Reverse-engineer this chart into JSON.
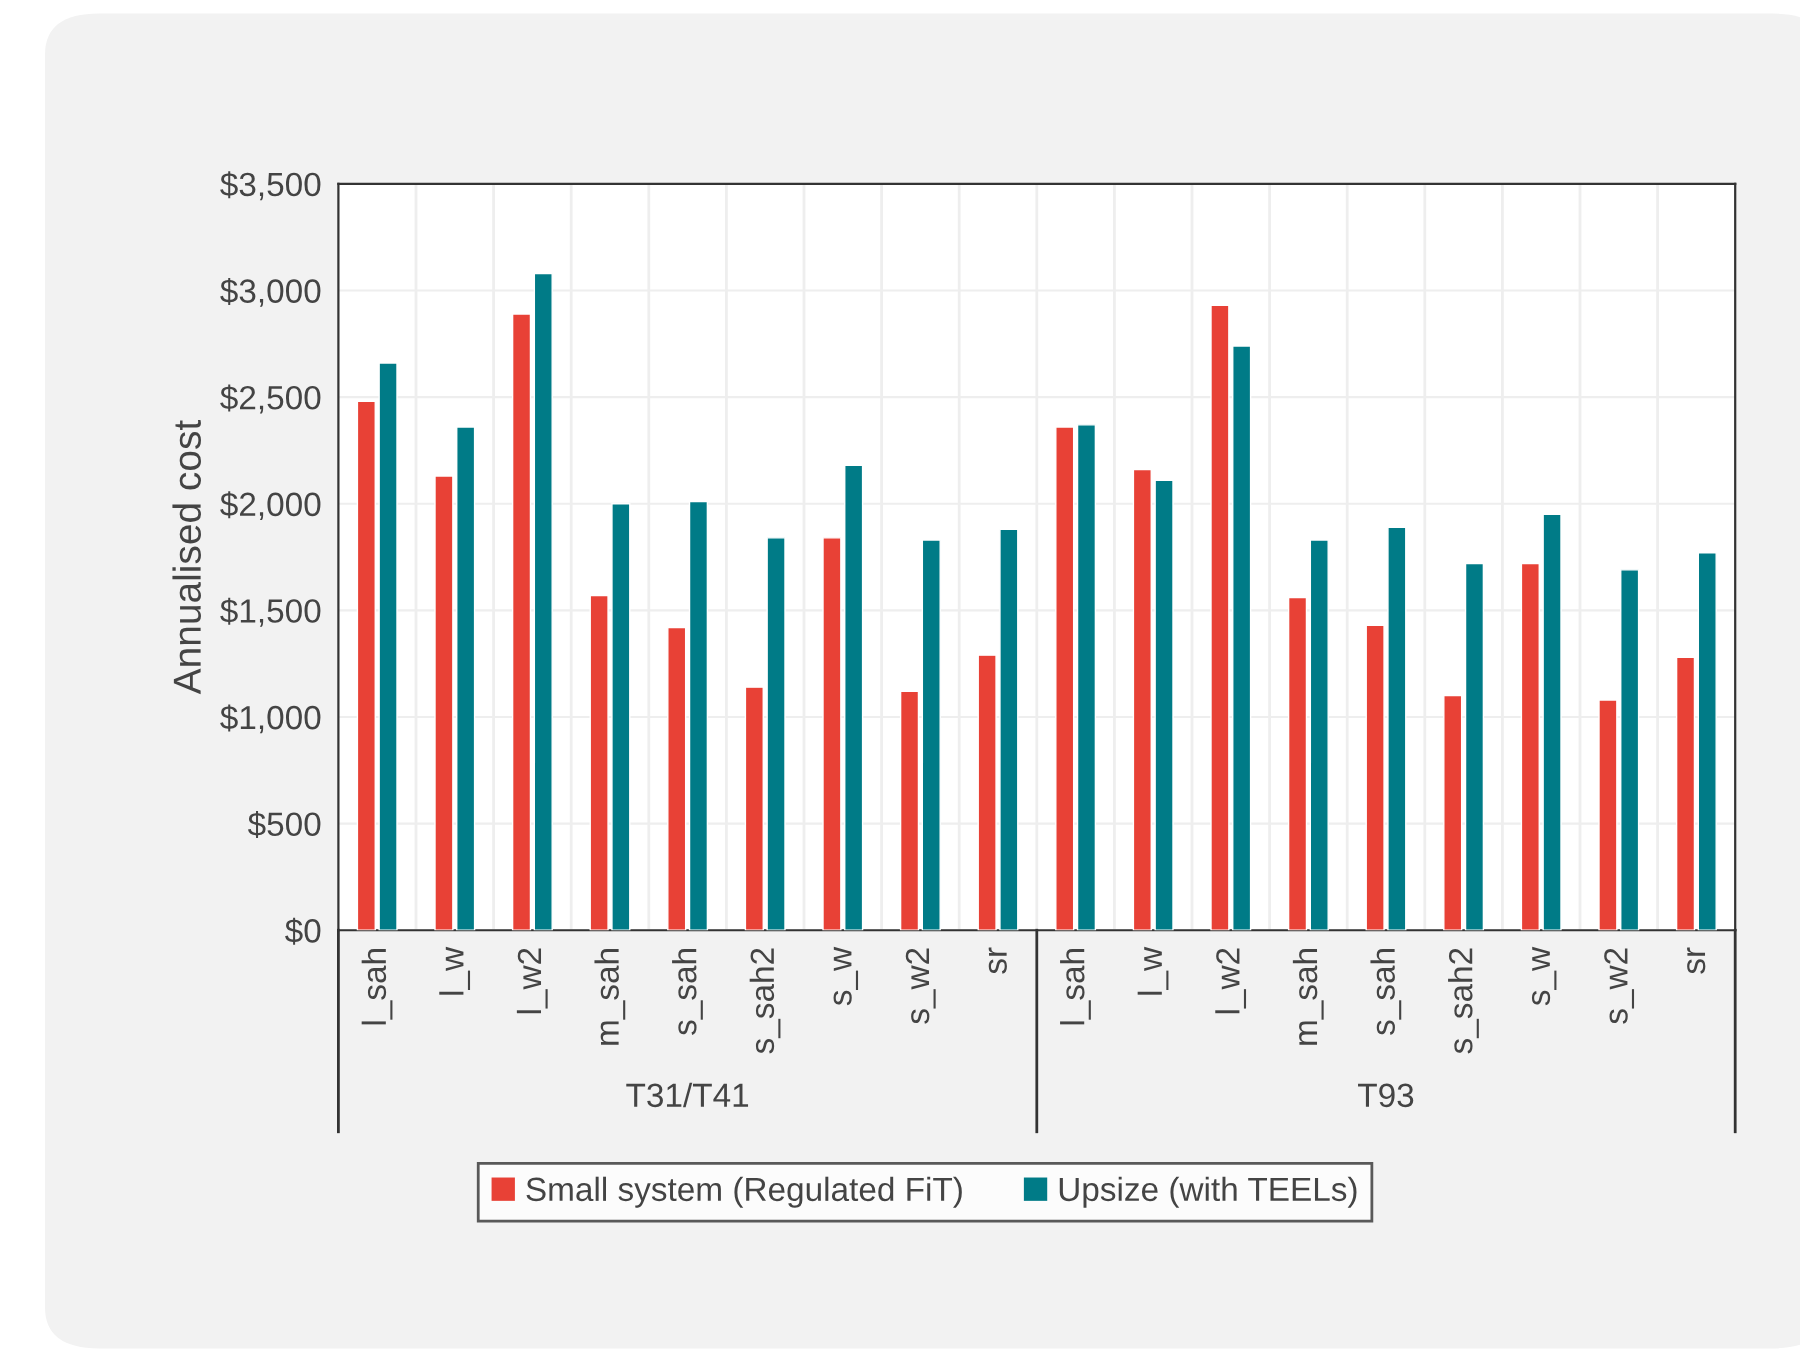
{
  "chart_data": {
    "type": "bar",
    "ylabel": "Annualised cost",
    "categories": [
      "l_sah",
      "l_w",
      "l_w2",
      "m_sah",
      "s_sah",
      "s_sah2",
      "s_w",
      "s_w2",
      "sr",
      "l_sah",
      "l_w",
      "l_w2",
      "m_sah",
      "s_sah",
      "s_sah2",
      "s_w",
      "s_w2",
      "sr"
    ],
    "series": [
      {
        "name": "Small system (Regulated FiT)",
        "color": "#e84136",
        "values": [
          2480,
          2130,
          2890,
          1570,
          1420,
          1140,
          1840,
          1120,
          1290,
          2360,
          2160,
          2930,
          1560,
          1430,
          1100,
          1720,
          1080,
          1280
        ]
      },
      {
        "name": "Upsize (with TEELs)",
        "color": "#007b87",
        "values": [
          2660,
          2360,
          3080,
          2000,
          2010,
          1840,
          2180,
          1830,
          1880,
          2370,
          2110,
          2740,
          1830,
          1890,
          1720,
          1950,
          1690,
          1770
        ]
      }
    ],
    "annotations": [
      "T31/T41",
      "T93"
    ],
    "ylim": [
      0,
      3500
    ],
    "yticks": [
      {
        "value": 0,
        "label": "$0"
      },
      {
        "value": 500,
        "label": "$500"
      },
      {
        "value": 1000,
        "label": "$1,000"
      },
      {
        "value": 1500,
        "label": "$1,500"
      },
      {
        "value": 2000,
        "label": "$2,000"
      },
      {
        "value": 2500,
        "label": "$2,500"
      },
      {
        "value": 3000,
        "label": "$3,000"
      },
      {
        "value": 3500,
        "label": "$3,500"
      }
    ],
    "grid": true,
    "legend": "bottom"
  }
}
